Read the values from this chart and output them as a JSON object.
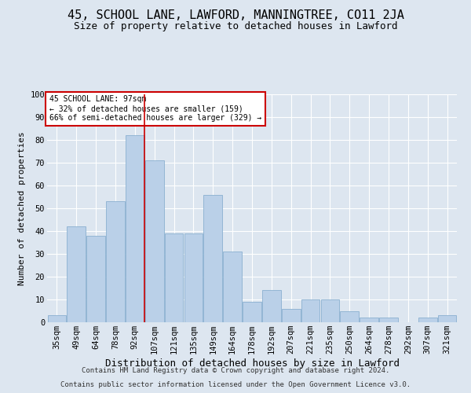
{
  "title": "45, SCHOOL LANE, LAWFORD, MANNINGTREE, CO11 2JA",
  "subtitle": "Size of property relative to detached houses in Lawford",
  "xlabel": "Distribution of detached houses by size in Lawford",
  "ylabel": "Number of detached properties",
  "categories": [
    "35sqm",
    "49sqm",
    "64sqm",
    "78sqm",
    "92sqm",
    "107sqm",
    "121sqm",
    "135sqm",
    "149sqm",
    "164sqm",
    "178sqm",
    "192sqm",
    "207sqm",
    "221sqm",
    "235sqm",
    "250sqm",
    "264sqm",
    "278sqm",
    "292sqm",
    "307sqm",
    "321sqm"
  ],
  "values": [
    3,
    42,
    38,
    53,
    82,
    71,
    39,
    39,
    56,
    31,
    9,
    14,
    6,
    10,
    10,
    5,
    2,
    2,
    0,
    2,
    3
  ],
  "bar_color": "#bad0e8",
  "bar_edge_color": "#8ab0d0",
  "bg_color": "#dde6f0",
  "grid_color": "#ffffff",
  "vline_color": "#cc0000",
  "annotation_text": "45 SCHOOL LANE: 97sqm\n← 32% of detached houses are smaller (159)\n66% of semi-detached houses are larger (329) →",
  "annotation_box_color": "#ffffff",
  "annotation_edge_color": "#cc0000",
  "footer1": "Contains HM Land Registry data © Crown copyright and database right 2024.",
  "footer2": "Contains public sector information licensed under the Open Government Licence v3.0.",
  "ylim": [
    0,
    100
  ],
  "title_fontsize": 11,
  "subtitle_fontsize": 9,
  "xlabel_fontsize": 9,
  "ylabel_fontsize": 8,
  "tick_fontsize": 7.5,
  "footer_fontsize": 6.5
}
